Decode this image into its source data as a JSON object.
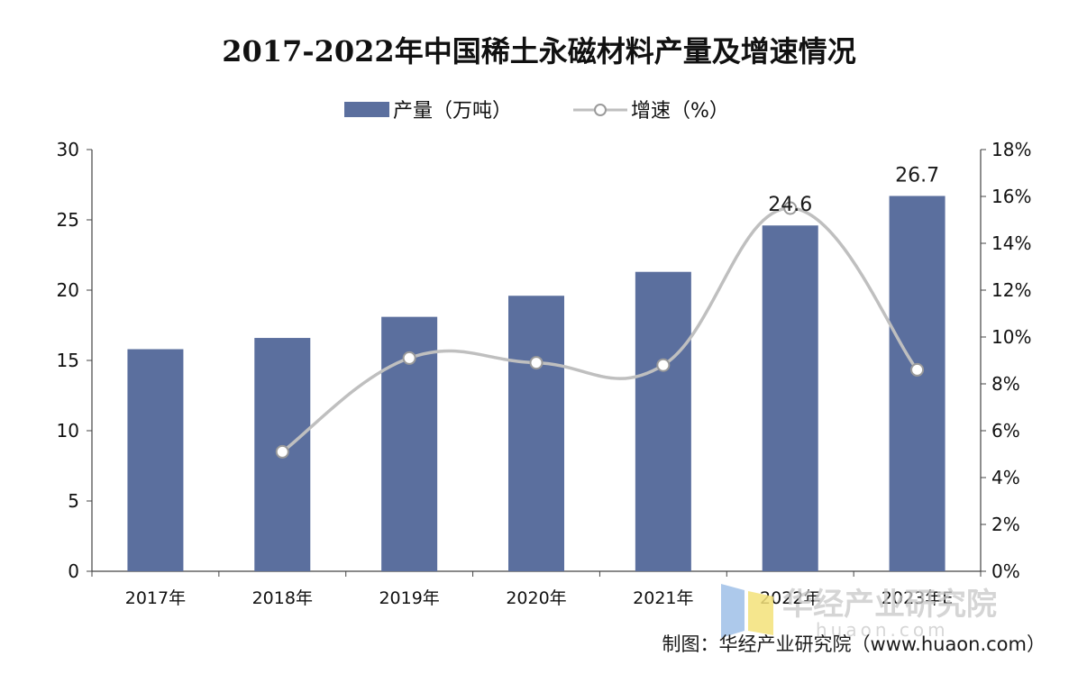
{
  "colors": {
    "bar": "#5b6f9e",
    "line": "#bfbfbf",
    "marker_fill": "#ffffff",
    "marker_stroke": "#9a9a9a",
    "axis": "#444444",
    "watermark_blue": "#9fc0e8",
    "watermark_yellow": "#f4e27a"
  },
  "watermark": {
    "name": "华经产业研究院",
    "domain": "huaon.com"
  },
  "source": "制图：华经产业研究院（www.huaon.com）",
  "chart_data": {
    "type": "bar",
    "title": "2017-2022年中国稀土永磁材料产量及增速情况",
    "categories": [
      "2017年",
      "2018年",
      "2019年",
      "2020年",
      "2021年",
      "2022年",
      "2023年E"
    ],
    "series": [
      {
        "name": "产量（万吨）",
        "type": "bar",
        "axis": "left",
        "values": [
          15.8,
          16.6,
          18.1,
          19.6,
          21.3,
          24.6,
          26.7
        ],
        "data_labels": [
          null,
          null,
          null,
          null,
          null,
          "24.6",
          "26.7"
        ]
      },
      {
        "name": "增速（%）",
        "type": "line",
        "axis": "right",
        "values": [
          null,
          5.1,
          9.1,
          8.9,
          8.8,
          15.5,
          8.6
        ]
      }
    ],
    "ylim_left": [
      0,
      30
    ],
    "yticks_left": [
      0,
      5,
      10,
      15,
      20,
      25,
      30
    ],
    "ylim_right": [
      0,
      18
    ],
    "yticks_right": [
      "0%",
      "2%",
      "4%",
      "6%",
      "8%",
      "10%",
      "12%",
      "14%",
      "16%",
      "18%"
    ],
    "legend_position": "top-center",
    "grid": false
  }
}
